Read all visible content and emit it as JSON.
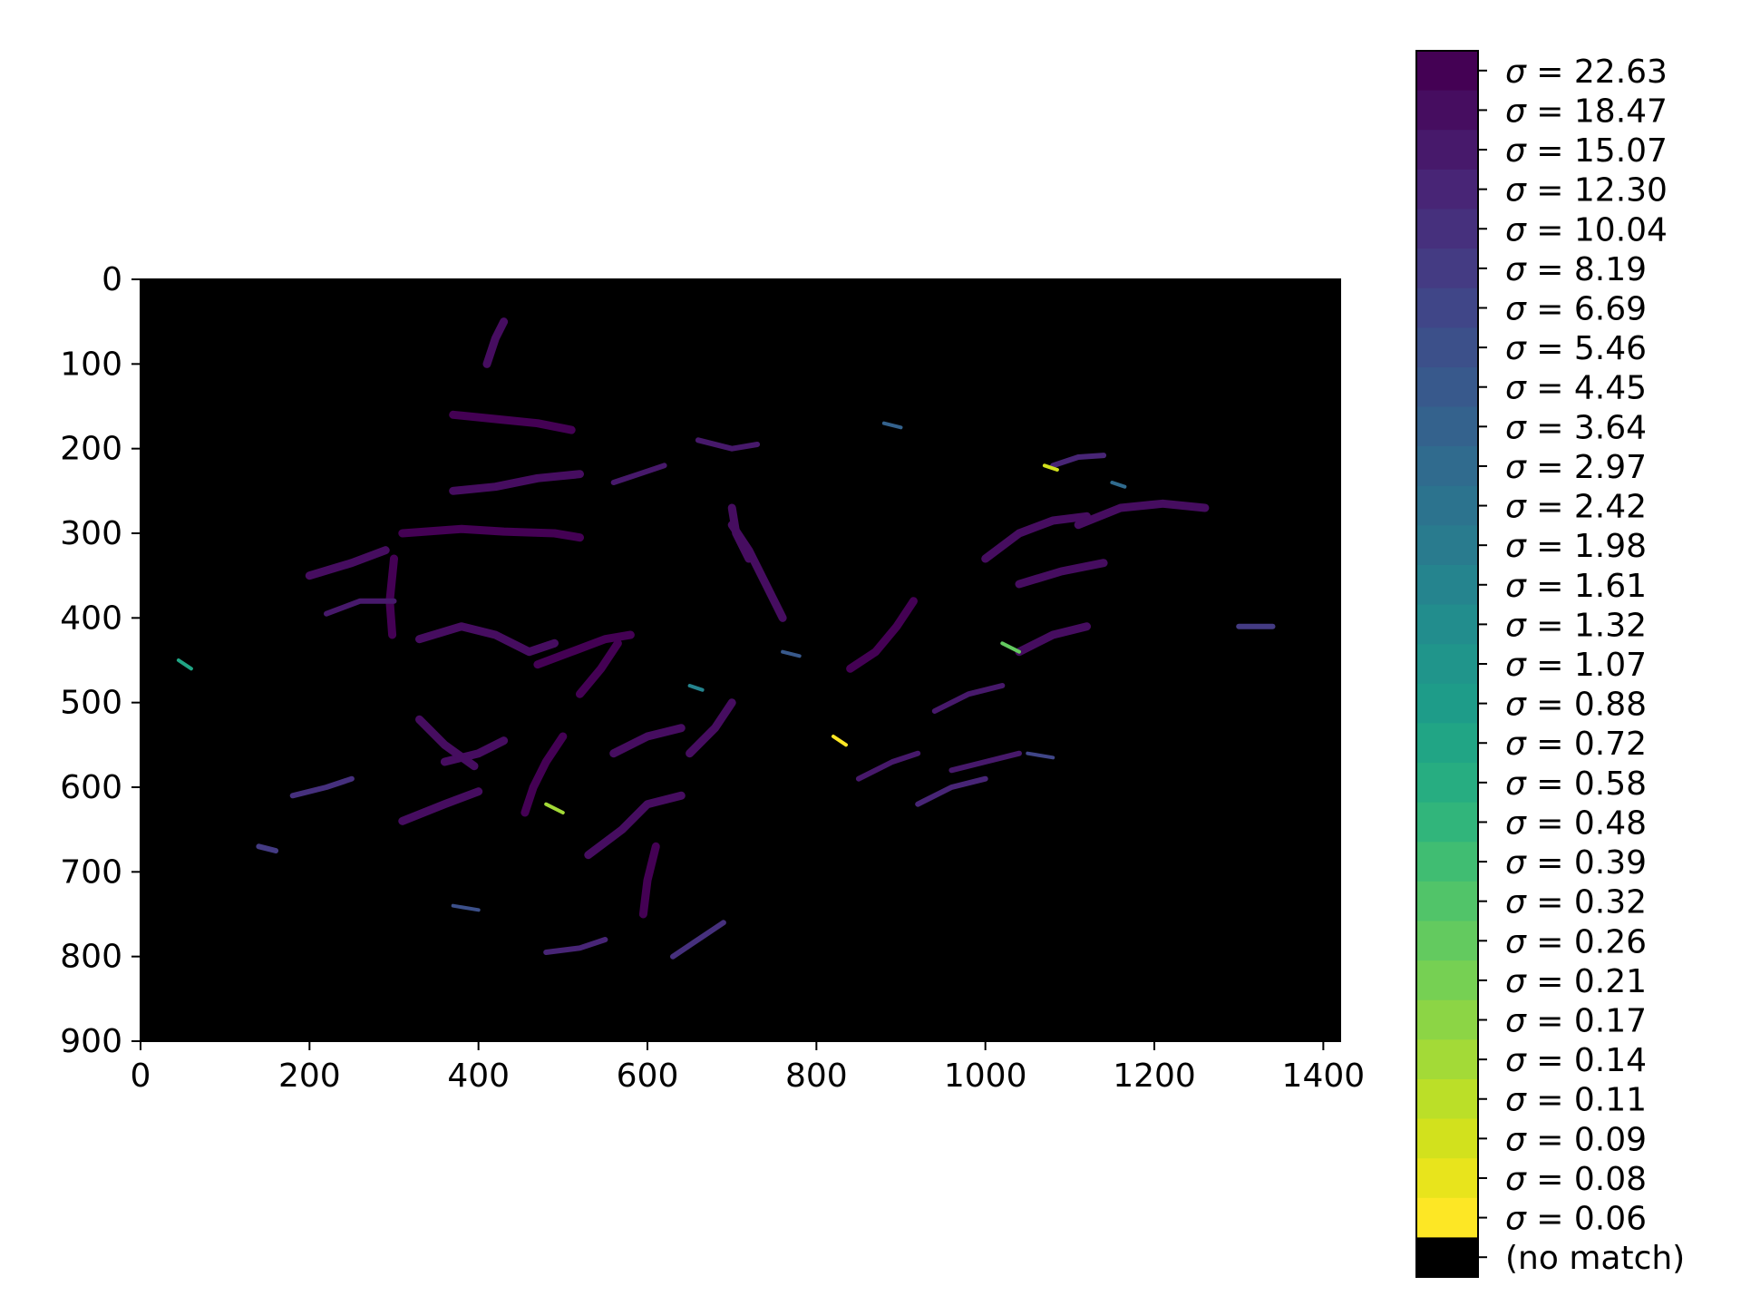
{
  "chart_data": {
    "type": "heatmap",
    "title": "",
    "xlabel": "",
    "ylabel": "",
    "xlim": [
      0,
      1420
    ],
    "ylim": [
      900,
      0
    ],
    "x_ticks": [
      0,
      200,
      400,
      600,
      800,
      1000,
      1200,
      1400
    ],
    "y_ticks": [
      0,
      100,
      200,
      300,
      400,
      500,
      600,
      700,
      800,
      900
    ],
    "background_color": "#000000",
    "colorbar": {
      "placement": "right",
      "colormap": "viridis (reversed)",
      "levels": [
        "22.63",
        "18.47",
        "15.07",
        "12.30",
        "10.04",
        "8.19",
        "6.69",
        "5.46",
        "4.45",
        "3.64",
        "2.97",
        "2.42",
        "1.98",
        "1.61",
        "1.32",
        "1.07",
        "0.88",
        "0.72",
        "0.58",
        "0.48",
        "0.39",
        "0.32",
        "0.26",
        "0.21",
        "0.17",
        "0.14",
        "0.11",
        "0.09",
        "0.08",
        "0.06"
      ],
      "label_prefix": "σ = ",
      "no_match_label": "(no match)",
      "no_match_color": "#000000"
    },
    "strands": [
      {
        "level": "22.63",
        "points": [
          [
            310,
            300
          ],
          [
            380,
            295
          ],
          [
            430,
            298
          ],
          [
            490,
            300
          ],
          [
            520,
            305
          ]
        ]
      },
      {
        "level": "22.63",
        "points": [
          [
            300,
            330
          ],
          [
            295,
            380
          ],
          [
            298,
            420
          ]
        ]
      },
      {
        "level": "22.63",
        "points": [
          [
            370,
            160
          ],
          [
            420,
            165
          ],
          [
            470,
            170
          ],
          [
            510,
            178
          ]
        ]
      },
      {
        "level": "22.63",
        "points": [
          [
            470,
            455
          ],
          [
            510,
            440
          ],
          [
            550,
            425
          ],
          [
            580,
            420
          ]
        ]
      },
      {
        "level": "22.63",
        "points": [
          [
            520,
            490
          ],
          [
            545,
            460
          ],
          [
            565,
            430
          ]
        ]
      },
      {
        "level": "22.63",
        "points": [
          [
            455,
            630
          ],
          [
            465,
            600
          ],
          [
            480,
            570
          ],
          [
            500,
            540
          ]
        ]
      },
      {
        "level": "22.63",
        "points": [
          [
            595,
            750
          ],
          [
            600,
            710
          ],
          [
            610,
            670
          ]
        ]
      },
      {
        "level": "22.63",
        "points": [
          [
            840,
            460
          ],
          [
            870,
            440
          ],
          [
            895,
            410
          ],
          [
            915,
            380
          ]
        ]
      },
      {
        "level": "18.47",
        "points": [
          [
            330,
            425
          ],
          [
            380,
            410
          ],
          [
            420,
            420
          ],
          [
            460,
            440
          ],
          [
            490,
            430
          ]
        ]
      },
      {
        "level": "18.47",
        "points": [
          [
            200,
            350
          ],
          [
            250,
            335
          ],
          [
            290,
            320
          ]
        ]
      },
      {
        "level": "18.47",
        "points": [
          [
            370,
            250
          ],
          [
            420,
            245
          ],
          [
            470,
            235
          ],
          [
            520,
            230
          ]
        ]
      },
      {
        "level": "18.47",
        "points": [
          [
            700,
            290
          ],
          [
            720,
            320
          ],
          [
            740,
            360
          ],
          [
            760,
            400
          ]
        ]
      },
      {
        "level": "18.47",
        "points": [
          [
            700,
            270
          ],
          [
            705,
            300
          ],
          [
            720,
            330
          ]
        ]
      },
      {
        "level": "18.47",
        "points": [
          [
            1000,
            330
          ],
          [
            1040,
            300
          ],
          [
            1080,
            285
          ],
          [
            1120,
            280
          ]
        ]
      },
      {
        "level": "18.47",
        "points": [
          [
            1110,
            290
          ],
          [
            1160,
            270
          ],
          [
            1210,
            265
          ],
          [
            1260,
            270
          ]
        ]
      },
      {
        "level": "18.47",
        "points": [
          [
            1040,
            360
          ],
          [
            1090,
            345
          ],
          [
            1140,
            335
          ]
        ]
      },
      {
        "level": "18.47",
        "points": [
          [
            1040,
            440
          ],
          [
            1080,
            420
          ],
          [
            1120,
            410
          ]
        ]
      },
      {
        "level": "18.47",
        "points": [
          [
            650,
            560
          ],
          [
            680,
            530
          ],
          [
            700,
            500
          ]
        ]
      },
      {
        "level": "18.47",
        "points": [
          [
            530,
            680
          ],
          [
            570,
            650
          ],
          [
            600,
            620
          ],
          [
            640,
            610
          ]
        ]
      },
      {
        "level": "18.47",
        "points": [
          [
            360,
            570
          ],
          [
            400,
            560
          ],
          [
            430,
            545
          ]
        ]
      },
      {
        "level": "18.47",
        "points": [
          [
            310,
            640
          ],
          [
            360,
            620
          ],
          [
            400,
            605
          ]
        ]
      },
      {
        "level": "18.47",
        "points": [
          [
            330,
            520
          ],
          [
            360,
            550
          ],
          [
            395,
            575
          ]
        ]
      },
      {
        "level": "18.47",
        "points": [
          [
            560,
            560
          ],
          [
            600,
            540
          ],
          [
            640,
            530
          ]
        ]
      },
      {
        "level": "18.47",
        "points": [
          [
            410,
            100
          ],
          [
            420,
            70
          ],
          [
            430,
            50
          ]
        ]
      },
      {
        "level": "15.07",
        "points": [
          [
            220,
            395
          ],
          [
            260,
            380
          ],
          [
            300,
            380
          ]
        ]
      },
      {
        "level": "15.07",
        "points": [
          [
            940,
            510
          ],
          [
            980,
            490
          ],
          [
            1020,
            480
          ]
        ]
      },
      {
        "level": "15.07",
        "points": [
          [
            960,
            580
          ],
          [
            1000,
            570
          ],
          [
            1040,
            560
          ]
        ]
      },
      {
        "level": "15.07",
        "points": [
          [
            660,
            190
          ],
          [
            700,
            200
          ],
          [
            730,
            195
          ]
        ]
      },
      {
        "level": "15.07",
        "points": [
          [
            850,
            590
          ],
          [
            890,
            570
          ],
          [
            920,
            560
          ]
        ]
      },
      {
        "level": "15.07",
        "points": [
          [
            560,
            240
          ],
          [
            590,
            230
          ],
          [
            620,
            220
          ]
        ]
      },
      {
        "level": "12.30",
        "points": [
          [
            1080,
            220
          ],
          [
            1110,
            210
          ],
          [
            1140,
            208
          ]
        ]
      },
      {
        "level": "12.30",
        "points": [
          [
            480,
            795
          ],
          [
            520,
            790
          ],
          [
            550,
            780
          ]
        ]
      },
      {
        "level": "12.30",
        "points": [
          [
            920,
            620
          ],
          [
            960,
            600
          ],
          [
            1000,
            590
          ]
        ]
      },
      {
        "level": "10.04",
        "points": [
          [
            630,
            800
          ],
          [
            660,
            780
          ],
          [
            690,
            760
          ]
        ]
      },
      {
        "level": "10.04",
        "points": [
          [
            180,
            610
          ],
          [
            220,
            600
          ],
          [
            250,
            590
          ]
        ]
      },
      {
        "level": "8.19",
        "points": [
          [
            140,
            670
          ],
          [
            160,
            675
          ]
        ]
      },
      {
        "level": "8.19",
        "points": [
          [
            1300,
            410
          ],
          [
            1340,
            410
          ]
        ]
      },
      {
        "level": "6.69",
        "points": [
          [
            1050,
            560
          ],
          [
            1080,
            565
          ]
        ]
      },
      {
        "level": "5.46",
        "points": [
          [
            370,
            740
          ],
          [
            400,
            745
          ]
        ]
      },
      {
        "level": "4.45",
        "points": [
          [
            760,
            440
          ],
          [
            780,
            445
          ]
        ]
      },
      {
        "level": "3.64",
        "points": [
          [
            880,
            170
          ],
          [
            900,
            175
          ]
        ]
      },
      {
        "level": "2.97",
        "points": [
          [
            1150,
            240
          ],
          [
            1165,
            245
          ]
        ]
      },
      {
        "level": "1.61",
        "points": [
          [
            650,
            480
          ],
          [
            665,
            485
          ]
        ]
      },
      {
        "level": "0.72",
        "points": [
          [
            45,
            450
          ],
          [
            60,
            460
          ]
        ]
      },
      {
        "level": "0.26",
        "points": [
          [
            1020,
            430
          ],
          [
            1040,
            440
          ]
        ]
      },
      {
        "level": "0.14",
        "points": [
          [
            480,
            620
          ],
          [
            500,
            630
          ]
        ]
      },
      {
        "level": "0.09",
        "points": [
          [
            1070,
            220
          ],
          [
            1085,
            225
          ]
        ]
      },
      {
        "level": "0.06",
        "points": [
          [
            820,
            540
          ],
          [
            835,
            550
          ]
        ]
      }
    ]
  }
}
